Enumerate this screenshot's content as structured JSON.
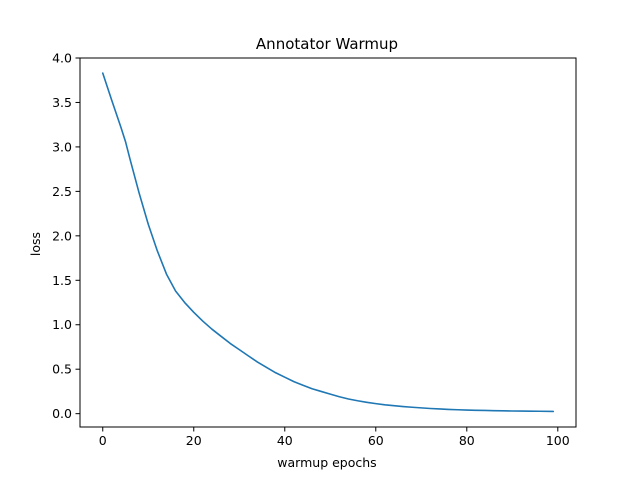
{
  "chart_data": {
    "type": "line",
    "title": "Annotator Warmup",
    "xlabel": "warmup epochs",
    "ylabel": "loss",
    "xlim": [
      -5,
      104
    ],
    "ylim": [
      -0.15,
      4.0
    ],
    "xticks": [
      0,
      20,
      40,
      60,
      80,
      100
    ],
    "xtick_labels": [
      "0",
      "20",
      "40",
      "60",
      "80",
      "100"
    ],
    "yticks": [
      0.0,
      0.5,
      1.0,
      1.5,
      2.0,
      2.5,
      3.0,
      3.5,
      4.0
    ],
    "ytick_labels": [
      "0.0",
      "0.5",
      "1.0",
      "1.5",
      "2.0",
      "2.5",
      "3.0",
      "3.5",
      "4.0"
    ],
    "grid": false,
    "series": [
      {
        "color": "#1f77b4",
        "x": [
          0,
          2,
          4,
          5,
          6,
          8,
          10,
          12,
          14,
          16,
          18,
          20,
          22,
          24,
          26,
          28,
          30,
          32,
          34,
          36,
          38,
          40,
          42,
          44,
          46,
          48,
          50,
          52,
          54,
          56,
          58,
          60,
          62,
          64,
          66,
          68,
          70,
          72,
          74,
          76,
          78,
          80,
          82,
          84,
          86,
          88,
          90,
          92,
          94,
          96,
          99
        ],
        "y": [
          3.83,
          3.52,
          3.22,
          3.06,
          2.86,
          2.48,
          2.13,
          1.83,
          1.57,
          1.38,
          1.25,
          1.14,
          1.04,
          0.95,
          0.87,
          0.79,
          0.72,
          0.65,
          0.58,
          0.52,
          0.46,
          0.41,
          0.36,
          0.32,
          0.28,
          0.25,
          0.22,
          0.19,
          0.165,
          0.145,
          0.128,
          0.113,
          0.1,
          0.09,
          0.08,
          0.072,
          0.065,
          0.058,
          0.053,
          0.048,
          0.044,
          0.041,
          0.038,
          0.036,
          0.034,
          0.032,
          0.03,
          0.029,
          0.028,
          0.027,
          0.025
        ]
      }
    ]
  }
}
